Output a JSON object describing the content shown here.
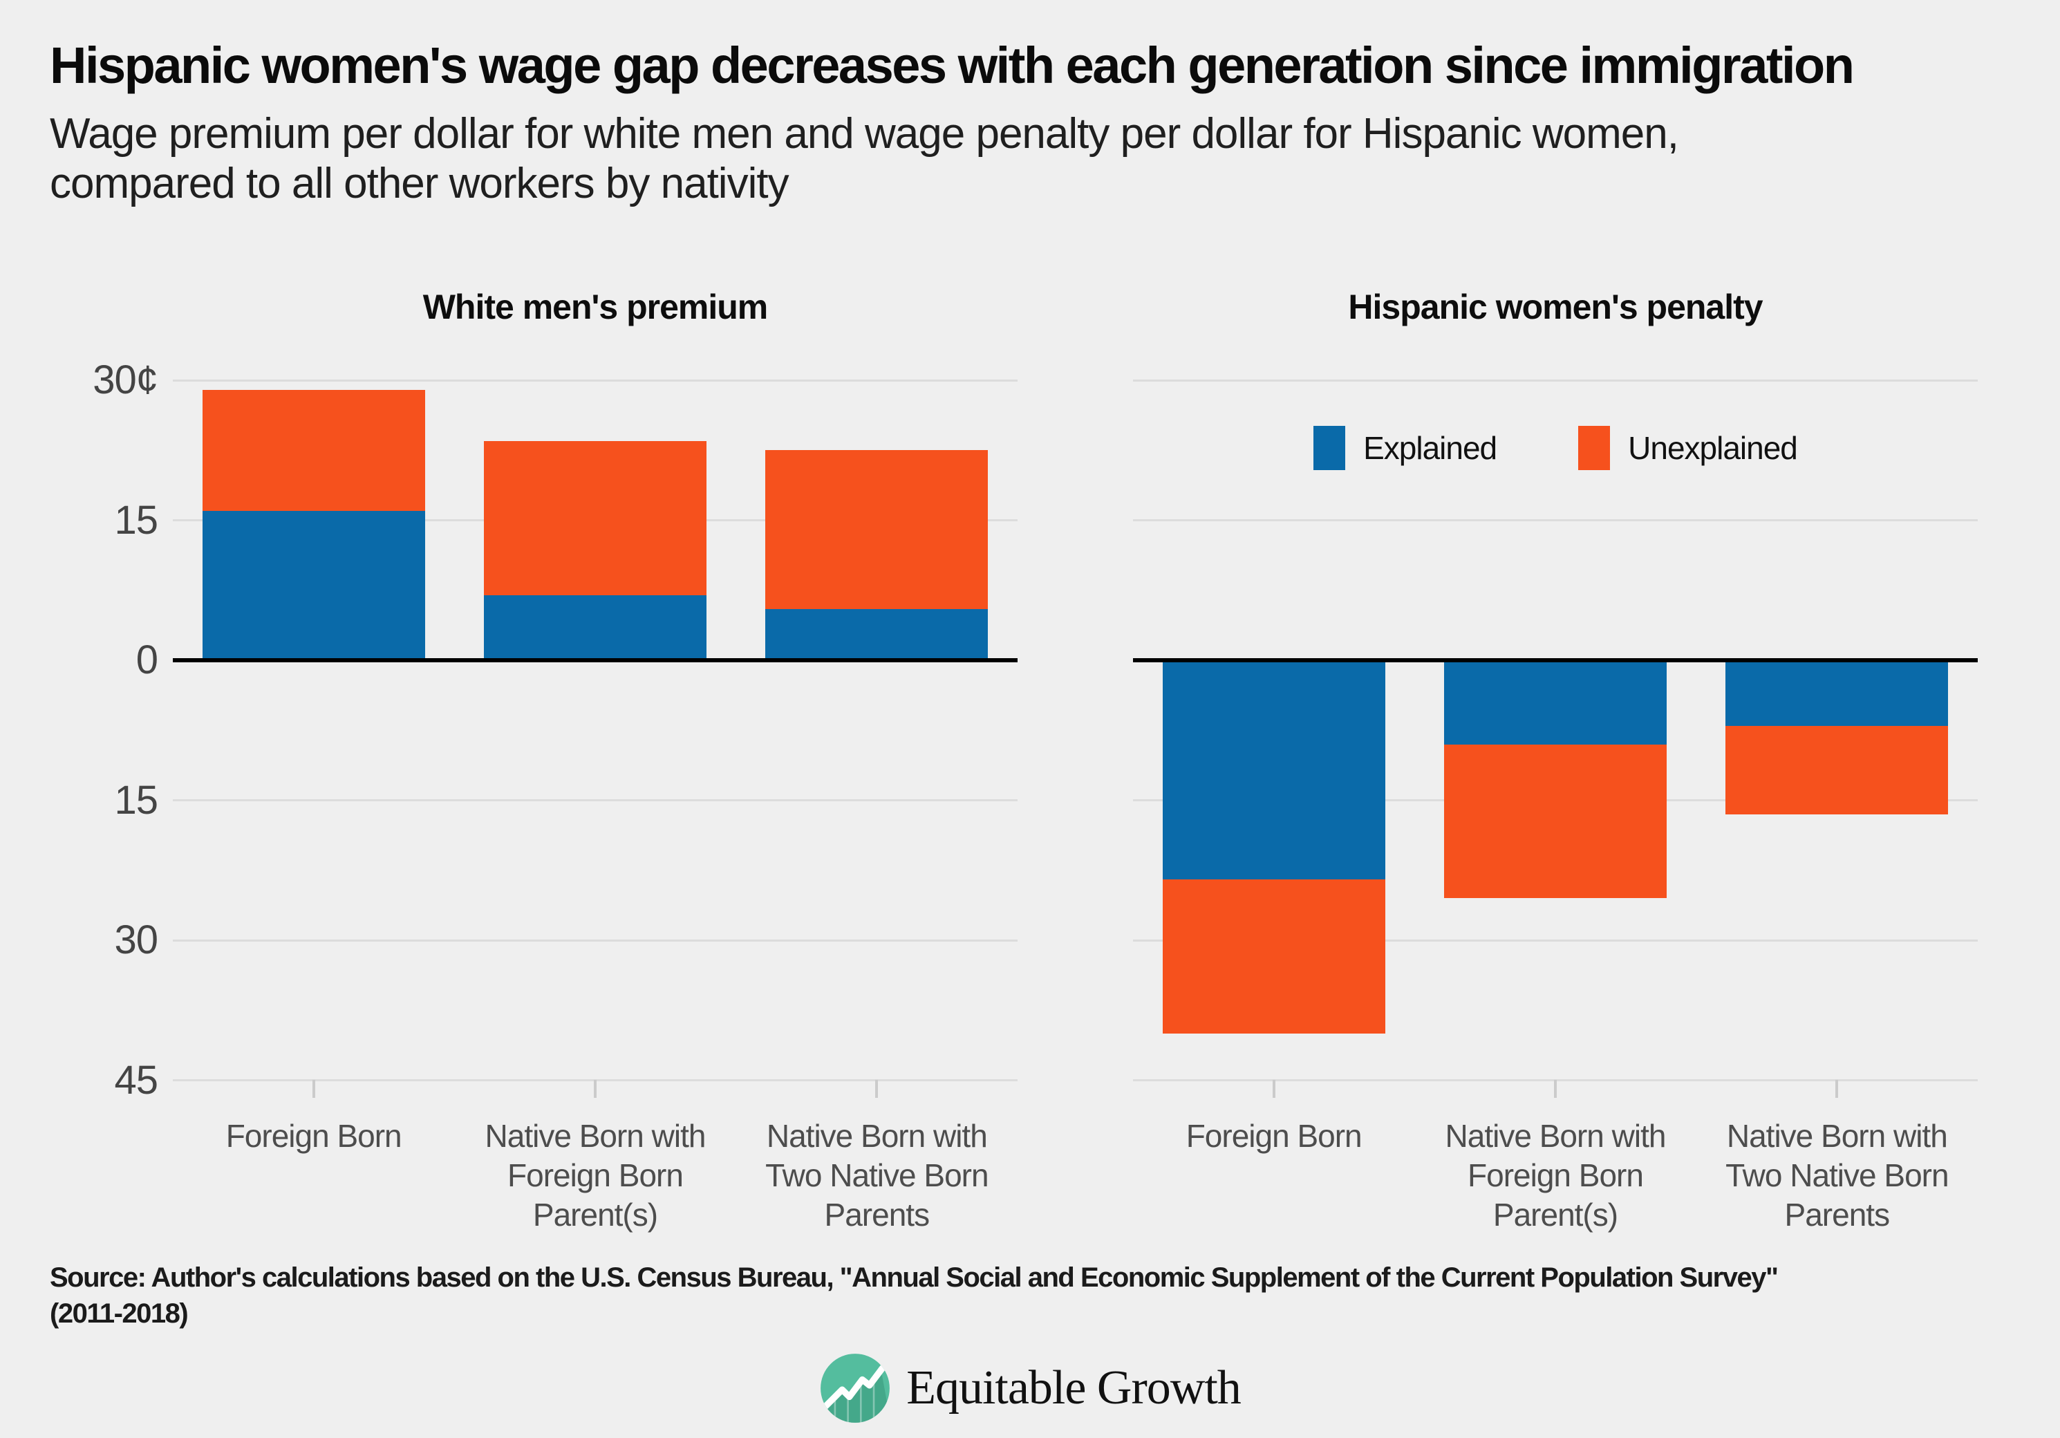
{
  "title": "Hispanic women's wage gap decreases with each generation since immigration",
  "subtitle_line1": "Wage premium per dollar for white men and wage penalty per dollar for Hispanic women,",
  "subtitle_line2": "compared to all other workers by nativity",
  "source_line1": "Source: Author's calculations based on the U.S. Census Bureau, \"Annual Social and Economic Supplement of the Current Population Survey\"",
  "source_line2": "(2011-2018)",
  "logo": {
    "text": "Equitable Growth"
  },
  "colors": {
    "explained": "#0a6aa9",
    "unexplained": "#f6511d",
    "background": "#efefef",
    "gridline": "#dcdcdc",
    "baseline": "#000000",
    "axis_text": "#444444",
    "category_text": "#4d4d4d",
    "logo_teal": "#54bd9e"
  },
  "legend": {
    "items": [
      {
        "label": "Explained",
        "color_key": "explained"
      },
      {
        "label": "Unexplained",
        "color_key": "unexplained"
      }
    ],
    "position": "top of right panel"
  },
  "chart_data": [
    {
      "type": "bar",
      "stacked": true,
      "direction": "up",
      "title": "White men's premium",
      "unit": "cents per dollar",
      "ylim": [
        -45,
        30
      ],
      "grid": true,
      "grid_values": [
        30,
        15,
        0,
        -15,
        -30,
        -45
      ],
      "y_ticks": [
        {
          "label": "30¢",
          "value": 30
        },
        {
          "label": "15",
          "value": 15
        },
        {
          "label": "0",
          "value": 0
        },
        {
          "label": "15",
          "value": -15
        },
        {
          "label": "30",
          "value": -30
        },
        {
          "label": "45",
          "value": -45
        }
      ],
      "categories": [
        [
          "Foreign Born"
        ],
        [
          "Native Born with",
          "Foreign Born",
          "Parent(s)"
        ],
        [
          "Native Born with",
          "Two Native Born",
          "Parents"
        ]
      ],
      "series": [
        {
          "name": "Explained",
          "values": [
            16,
            7,
            5.5
          ]
        },
        {
          "name": "Unexplained",
          "values": [
            13,
            16.5,
            17
          ]
        }
      ],
      "totals": [
        29,
        23.5,
        22.5
      ]
    },
    {
      "type": "bar",
      "stacked": true,
      "direction": "down",
      "title": "Hispanic women's penalty",
      "unit": "cents per dollar",
      "ylim": [
        -45,
        30
      ],
      "grid": true,
      "grid_values": [
        30,
        15,
        0,
        -15,
        -30,
        -45
      ],
      "y_ticks": [],
      "categories": [
        [
          "Foreign Born"
        ],
        [
          "Native Born with",
          "Foreign Born",
          "Parent(s)"
        ],
        [
          "Native Born with",
          "Two Native Born",
          "Parents"
        ]
      ],
      "series": [
        {
          "name": "Explained",
          "values": [
            -23.5,
            -9,
            -7
          ]
        },
        {
          "name": "Unexplained",
          "values": [
            -16.5,
            -16.5,
            -9.5
          ]
        }
      ],
      "totals": [
        -40,
        -25.5,
        -16.5
      ]
    }
  ]
}
